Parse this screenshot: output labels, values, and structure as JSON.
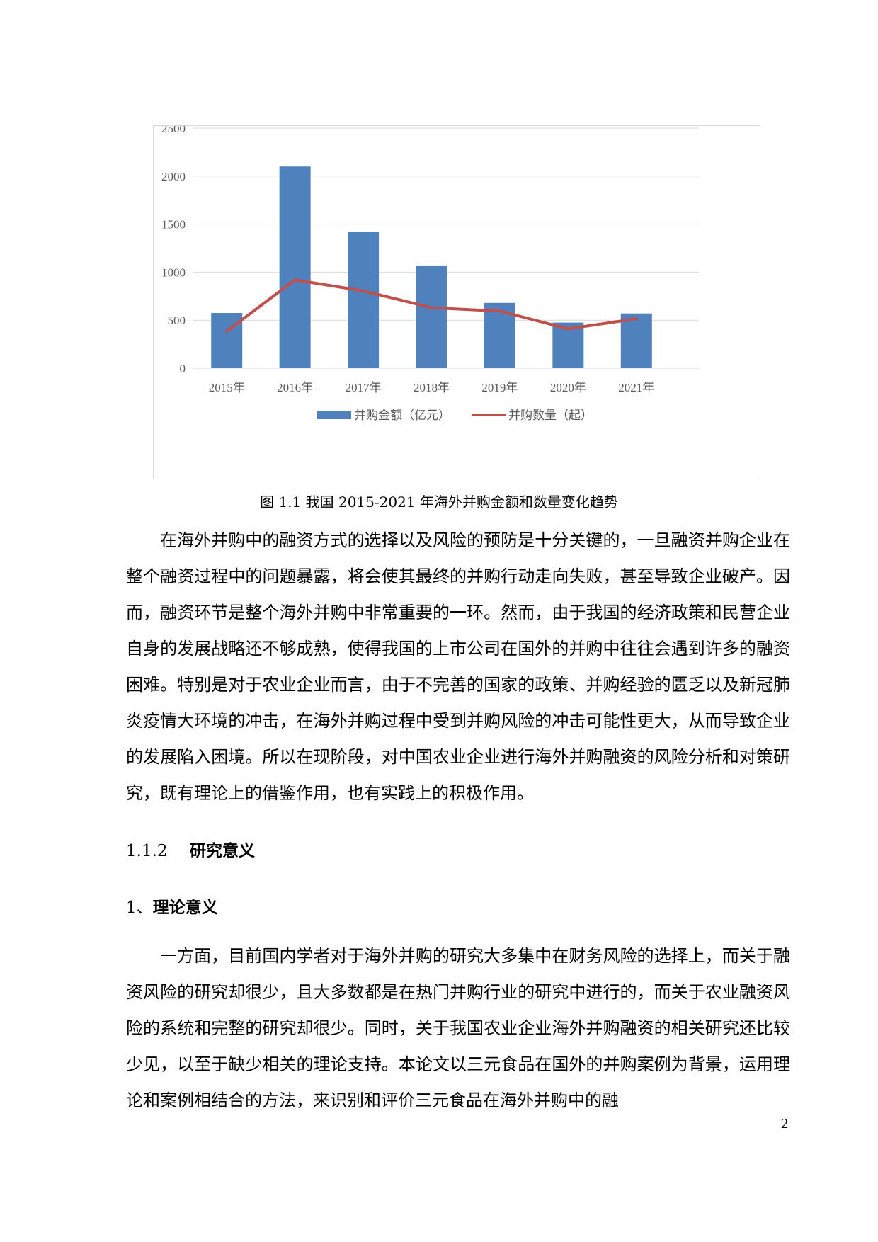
{
  "chart_data": {
    "type": "bar",
    "categories": [
      "2015年",
      "2016年",
      "2017年",
      "2018年",
      "2019年",
      "2020年",
      "2021年"
    ],
    "series": [
      {
        "name": "并购金额（亿元）",
        "type": "bar",
        "color": "#4f81bd",
        "values": [
          575,
          2100,
          1420,
          1070,
          680,
          475,
          570
        ]
      },
      {
        "name": "并购数量（起）",
        "type": "line",
        "color": "#c0504d",
        "values": [
          385,
          920,
          805,
          630,
          595,
          410,
          515
        ]
      }
    ],
    "yticks": [
      0,
      500,
      1000,
      1500,
      2000,
      2500
    ],
    "ylim": [
      0,
      2500
    ],
    "grid": true,
    "legend": "bottom"
  },
  "figure": {
    "caption": "图 1.1 我国 2015-2021 年海外并购金额和数量变化趋势"
  },
  "paragraphs": {
    "p1": "在海外并购中的融资方式的选择以及风险的预防是十分关键的，一旦融资并购企业在整个融资过程中的问题暴露，将会使其最终的并购行动走向失败，甚至导致企业破产。因而，融资环节是整个海外并购中非常重要的一环。然而，由于我国的经济政策和民营企业自身的发展战略还不够成熟，使得我国的上市公司在国外的并购中往往会遇到许多的融资困难。特别是对于农业企业而言，由于不完善的国家的政策、并购经验的匮乏以及新冠肺炎疫情大环境的冲击，在海外并购过程中受到并购风险的冲击可能性更大，从而导致企业的发展陷入困境。所以在现阶段，对中国农业企业进行海外并购融资的风险分析和对策研究，既有理论上的借鉴作用，也有实践上的积极作用。",
    "p2": "一方面，目前国内学者对于海外并购的研究大多集中在财务风险的选择上，而关于融资风险的研究却很少，且大多数都是在热门并购行业的研究中进行的，而关于农业融资风险的系统和完整的研究却很少。同时，关于我国农业企业海外并购融资的相关研究还比较少见，以至于缺少相关的理论支持。本论文以三元食品在国外的并购案例为背景，运用理论和案例相结合的方法，来识别和评价三元食品在海外并购中的融"
  },
  "headings": {
    "section_number": "1.1.2",
    "section_title": "研究意义",
    "sub_number": "1、",
    "sub_title": "理论意义"
  },
  "page_number": "2"
}
